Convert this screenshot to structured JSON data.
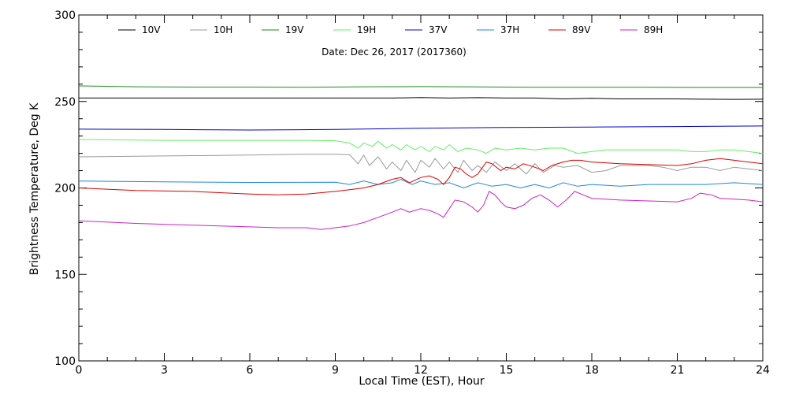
{
  "chart_data": {
    "type": "line",
    "title": "",
    "subtitle": "Date: Dec 26, 2017 (2017360)",
    "xlabel": "Local Time (EST), Hour",
    "ylabel": "Brightness Temperature, Deg K",
    "xlim": [
      0,
      24
    ],
    "ylim": [
      100,
      300
    ],
    "xticks": [
      "0",
      "3",
      "6",
      "9",
      "12",
      "15",
      "18",
      "21",
      "24"
    ],
    "yticks": [
      "100",
      "150",
      "200",
      "250",
      "300"
    ],
    "grid": false,
    "legend_position": "top",
    "series": [
      {
        "name": "10V",
        "color": "#000000",
        "points": [
          [
            0,
            252
          ],
          [
            2,
            252
          ],
          [
            4,
            252
          ],
          [
            6,
            252
          ],
          [
            8,
            252
          ],
          [
            9,
            252
          ],
          [
            10,
            252
          ],
          [
            11,
            252
          ],
          [
            12,
            252.3
          ],
          [
            13,
            252
          ],
          [
            14,
            252.2
          ],
          [
            15,
            252
          ],
          [
            16,
            252
          ],
          [
            17,
            251.5
          ],
          [
            18,
            251.8
          ],
          [
            19,
            251.5
          ],
          [
            20,
            251.5
          ],
          [
            21,
            251.5
          ],
          [
            22,
            251.3
          ],
          [
            23,
            251.2
          ],
          [
            24,
            251.3
          ]
        ]
      },
      {
        "name": "10H",
        "color": "#999999",
        "points": [
          [
            0,
            218
          ],
          [
            3,
            218.5
          ],
          [
            6,
            219
          ],
          [
            8,
            219.5
          ],
          [
            9,
            219.5
          ],
          [
            9.5,
            219.2
          ],
          [
            9.8,
            214
          ],
          [
            10,
            219
          ],
          [
            10.2,
            213
          ],
          [
            10.5,
            218
          ],
          [
            10.8,
            211
          ],
          [
            11,
            215
          ],
          [
            11.3,
            210
          ],
          [
            11.5,
            216
          ],
          [
            11.8,
            209
          ],
          [
            12,
            216
          ],
          [
            12.3,
            212
          ],
          [
            12.5,
            217
          ],
          [
            12.8,
            211
          ],
          [
            13,
            215
          ],
          [
            13.3,
            209
          ],
          [
            13.5,
            216
          ],
          [
            13.8,
            210
          ],
          [
            14,
            213
          ],
          [
            14.3,
            209
          ],
          [
            14.6,
            215
          ],
          [
            15,
            210
          ],
          [
            15.3,
            214
          ],
          [
            15.7,
            208
          ],
          [
            16,
            214
          ],
          [
            16.3,
            209
          ],
          [
            16.7,
            213
          ],
          [
            17,
            212
          ],
          [
            17.5,
            213
          ],
          [
            18,
            209
          ],
          [
            18.5,
            210
          ],
          [
            19,
            213
          ],
          [
            19.5,
            213
          ],
          [
            20,
            213
          ],
          [
            20.5,
            212
          ],
          [
            21,
            210
          ],
          [
            21.5,
            212
          ],
          [
            22,
            212
          ],
          [
            22.5,
            210
          ],
          [
            23,
            212
          ],
          [
            23.5,
            211
          ],
          [
            24,
            210
          ]
        ]
      },
      {
        "name": "19V",
        "color": "#1a8a1a",
        "points": [
          [
            0,
            259
          ],
          [
            2,
            258.5
          ],
          [
            4,
            258.3
          ],
          [
            6,
            258.3
          ],
          [
            8,
            258.2
          ],
          [
            10,
            258.5
          ],
          [
            12,
            258.6
          ],
          [
            14,
            258.4
          ],
          [
            16,
            258.2
          ],
          [
            18,
            258.2
          ],
          [
            20,
            258.2
          ],
          [
            22,
            258.1
          ],
          [
            24,
            258.1
          ]
        ]
      },
      {
        "name": "19H",
        "color": "#66ee66",
        "points": [
          [
            0,
            228
          ],
          [
            3,
            227.5
          ],
          [
            6,
            227.5
          ],
          [
            8,
            227.5
          ],
          [
            9,
            227.3
          ],
          [
            9.5,
            226
          ],
          [
            9.8,
            223
          ],
          [
            10,
            226
          ],
          [
            10.3,
            224
          ],
          [
            10.5,
            227
          ],
          [
            10.8,
            223
          ],
          [
            11,
            225
          ],
          [
            11.3,
            222
          ],
          [
            11.5,
            225
          ],
          [
            11.8,
            222
          ],
          [
            12,
            224
          ],
          [
            12.3,
            221
          ],
          [
            12.5,
            224
          ],
          [
            12.8,
            222
          ],
          [
            13,
            225
          ],
          [
            13.3,
            221
          ],
          [
            13.6,
            223
          ],
          [
            14,
            222
          ],
          [
            14.3,
            220
          ],
          [
            14.6,
            223
          ],
          [
            15,
            222
          ],
          [
            15.5,
            223
          ],
          [
            16,
            222
          ],
          [
            16.5,
            223
          ],
          [
            17,
            223
          ],
          [
            17.5,
            220
          ],
          [
            18,
            221
          ],
          [
            18.5,
            222
          ],
          [
            19,
            222
          ],
          [
            20,
            222
          ],
          [
            21,
            222
          ],
          [
            21.5,
            221
          ],
          [
            22,
            221
          ],
          [
            22.5,
            222
          ],
          [
            23,
            222
          ],
          [
            23.5,
            221
          ],
          [
            24,
            220
          ]
        ]
      },
      {
        "name": "37V",
        "color": "#0000cc",
        "points": [
          [
            0,
            234
          ],
          [
            3,
            233.8
          ],
          [
            6,
            233.5
          ],
          [
            9,
            233.8
          ],
          [
            12,
            234.5
          ],
          [
            15,
            235
          ],
          [
            18,
            235.2
          ],
          [
            21,
            235.5
          ],
          [
            24,
            235.8
          ]
        ]
      },
      {
        "name": "37H",
        "color": "#1e88dd",
        "points": [
          [
            0,
            204
          ],
          [
            3,
            203.5
          ],
          [
            6,
            203.2
          ],
          [
            9,
            203.3
          ],
          [
            9.5,
            202
          ],
          [
            10,
            204
          ],
          [
            10.5,
            202
          ],
          [
            11,
            203
          ],
          [
            11.3,
            205
          ],
          [
            11.7,
            202
          ],
          [
            12,
            204
          ],
          [
            12.5,
            202
          ],
          [
            13,
            203
          ],
          [
            13.5,
            200
          ],
          [
            14,
            203
          ],
          [
            14.5,
            201
          ],
          [
            15,
            202
          ],
          [
            15.5,
            200
          ],
          [
            16,
            202
          ],
          [
            16.5,
            200
          ],
          [
            17,
            203
          ],
          [
            17.5,
            201
          ],
          [
            18,
            202
          ],
          [
            19,
            201
          ],
          [
            20,
            202
          ],
          [
            21,
            202
          ],
          [
            22,
            202
          ],
          [
            23,
            203
          ],
          [
            24,
            202
          ]
        ]
      },
      {
        "name": "89V",
        "color": "#dd0000",
        "points": [
          [
            0,
            200
          ],
          [
            2,
            198.5
          ],
          [
            4,
            198
          ],
          [
            6,
            196.5
          ],
          [
            7,
            196
          ],
          [
            8,
            196.5
          ],
          [
            9,
            198
          ],
          [
            9.5,
            199
          ],
          [
            10,
            200
          ],
          [
            10.5,
            202
          ],
          [
            11,
            205
          ],
          [
            11.3,
            206
          ],
          [
            11.6,
            203
          ],
          [
            12,
            206
          ],
          [
            12.3,
            207
          ],
          [
            12.6,
            205
          ],
          [
            12.8,
            202
          ],
          [
            13,
            206
          ],
          [
            13.2,
            212
          ],
          [
            13.4,
            211
          ],
          [
            13.6,
            208
          ],
          [
            13.8,
            206
          ],
          [
            14,
            208
          ],
          [
            14.3,
            215
          ],
          [
            14.5,
            214
          ],
          [
            14.8,
            210
          ],
          [
            15,
            212
          ],
          [
            15.3,
            211
          ],
          [
            15.6,
            214
          ],
          [
            16,
            212
          ],
          [
            16.3,
            210
          ],
          [
            16.6,
            213
          ],
          [
            17,
            215
          ],
          [
            17.3,
            216
          ],
          [
            17.6,
            216
          ],
          [
            18,
            215
          ],
          [
            19,
            214
          ],
          [
            20,
            213.5
          ],
          [
            21,
            213
          ],
          [
            21.5,
            214
          ],
          [
            22,
            216
          ],
          [
            22.5,
            217
          ],
          [
            23,
            216
          ],
          [
            23.5,
            215
          ],
          [
            24,
            214
          ]
        ]
      },
      {
        "name": "89H",
        "color": "#cc22cc",
        "points": [
          [
            0,
            181
          ],
          [
            2,
            179.5
          ],
          [
            4,
            178.5
          ],
          [
            6,
            177.5
          ],
          [
            7,
            177
          ],
          [
            8,
            177
          ],
          [
            8.5,
            176
          ],
          [
            9,
            177
          ],
          [
            9.5,
            178
          ],
          [
            10,
            180
          ],
          [
            10.5,
            183
          ],
          [
            11,
            186
          ],
          [
            11.3,
            188
          ],
          [
            11.6,
            186
          ],
          [
            12,
            188
          ],
          [
            12.3,
            187
          ],
          [
            12.6,
            185
          ],
          [
            12.8,
            183
          ],
          [
            13,
            188
          ],
          [
            13.2,
            193
          ],
          [
            13.5,
            192
          ],
          [
            13.8,
            189
          ],
          [
            14,
            186
          ],
          [
            14.2,
            190
          ],
          [
            14.4,
            198
          ],
          [
            14.6,
            196
          ],
          [
            14.8,
            192
          ],
          [
            15,
            189
          ],
          [
            15.3,
            188
          ],
          [
            15.6,
            190
          ],
          [
            15.9,
            194
          ],
          [
            16.2,
            196
          ],
          [
            16.5,
            193
          ],
          [
            16.8,
            189
          ],
          [
            17.1,
            193
          ],
          [
            17.4,
            198
          ],
          [
            17.7,
            196
          ],
          [
            18,
            194
          ],
          [
            19,
            193
          ],
          [
            20,
            192.5
          ],
          [
            21,
            192
          ],
          [
            21.5,
            194
          ],
          [
            21.8,
            197
          ],
          [
            22.2,
            196
          ],
          [
            22.5,
            194
          ],
          [
            23,
            193.5
          ],
          [
            23.5,
            193
          ],
          [
            24,
            192
          ]
        ]
      }
    ]
  }
}
